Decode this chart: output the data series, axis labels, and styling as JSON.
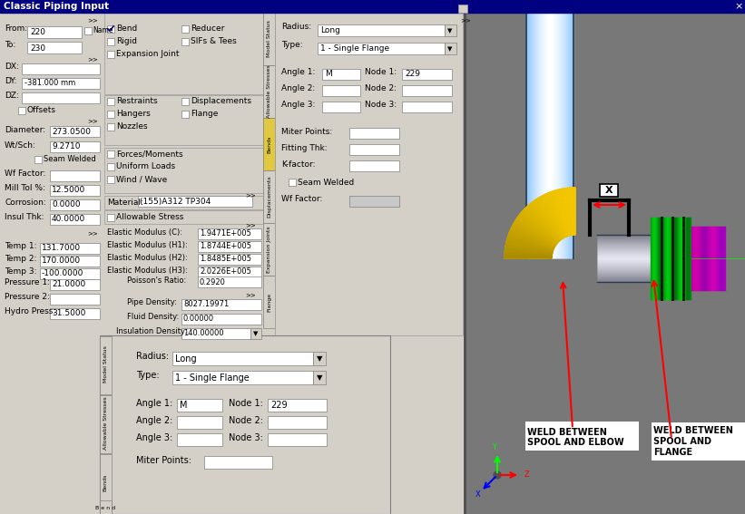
{
  "bg_color": "#787878",
  "dialog_bg": "#d4d0c8",
  "title": "Classic Piping Input",
  "title_bar_color": "#000080",
  "title_bar_text_color": "#ffffff",
  "labels": {
    "from_val": "220",
    "to_val": "230",
    "dy_val": "-381.000 mm",
    "diameter_val": "273.0500",
    "wt_sch_val": "9.2710",
    "mill_tol_val": "12.5000",
    "corrosion_val": "0.0000",
    "insul_thk_val": "40.0000",
    "temp1_val": "131.7000",
    "temp2_val": "170.0000",
    "temp3_val": "-100.0000",
    "pressure1_val": "21.0000",
    "hydro_press_val": "31.5000"
  },
  "material": "(155)A312 TP304",
  "elastic_c": "1.9471E+005",
  "elastic_h1": "1.8744E+005",
  "elastic_h2": "1.8485E+005",
  "elastic_h3": "2.0226E+005",
  "poisson": "0.2920",
  "pipe_density": "8027.19971",
  "fluid_density": "0.00000",
  "insulation_density": "140.00000",
  "radius_val": "Long",
  "type_val": "1 - Single Flange",
  "angle1_val": "M",
  "node1_val": "229",
  "tabs": [
    "Model Status",
    "Allowable Stresses",
    "Bends",
    "Displacements",
    "Expansion Joints",
    "Flange"
  ],
  "weld1_line1": "WELD BETWEEN",
  "weld1_line2": "SPOOL AND ELBOW",
  "weld2_line1": "WELD BETWEEN",
  "weld2_line2": "SPOOL AND",
  "weld2_line3": "FLANGE",
  "x_label": "X"
}
